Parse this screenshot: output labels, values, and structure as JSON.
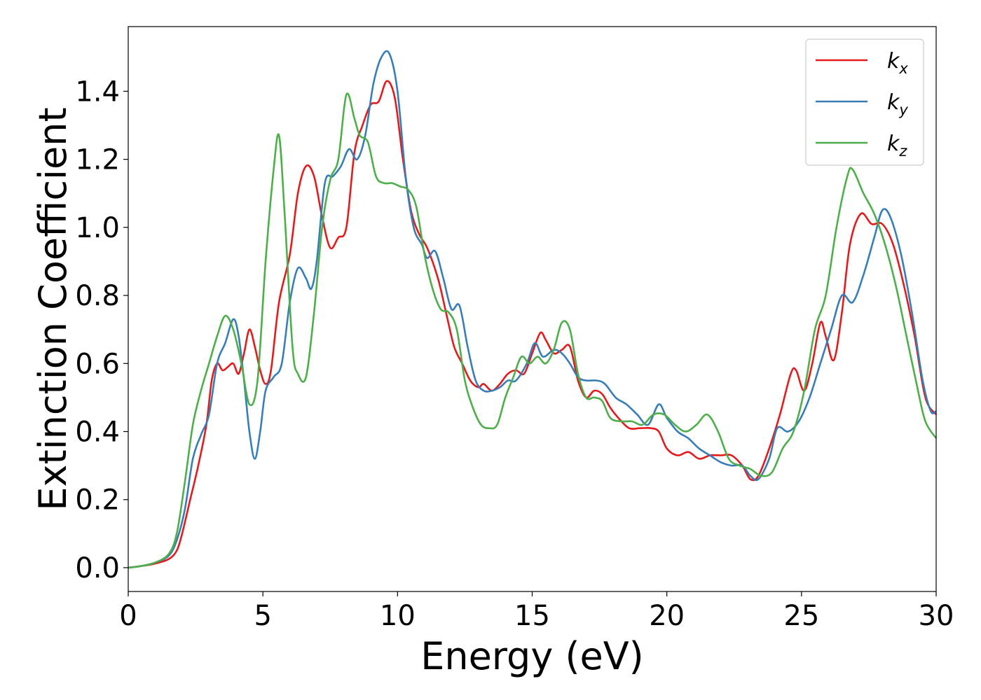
{
  "chart_data": {
    "type": "line",
    "xlabel": "Energy (eV)",
    "ylabel": "Extinction Coefficient",
    "xlim": [
      0,
      30
    ],
    "ylim": [
      -0.07,
      1.59
    ],
    "x_ticks": [
      "0",
      "5",
      "10",
      "15",
      "20",
      "25",
      "30"
    ],
    "y_ticks": [
      "0.0",
      "0.2",
      "0.4",
      "0.6",
      "0.8",
      "1.0",
      "1.2",
      "1.4"
    ],
    "grid": false,
    "legend_position": "top-right",
    "colors": {
      "kx": "#e41a1c",
      "ky": "#377eb8",
      "kz": "#4daf4a"
    },
    "legend": [
      {
        "base": "k",
        "sub": "x"
      },
      {
        "base": "k",
        "sub": "y"
      },
      {
        "base": "k",
        "sub": "z"
      }
    ],
    "series": [
      {
        "key": "kx",
        "points": [
          [
            0,
            0
          ],
          [
            0.5,
            0.005
          ],
          [
            1,
            0.012
          ],
          [
            1.5,
            0.025
          ],
          [
            1.8,
            0.05
          ],
          [
            2,
            0.1
          ],
          [
            2.3,
            0.2
          ],
          [
            2.6,
            0.3
          ],
          [
            2.9,
            0.42
          ],
          [
            3.1,
            0.55
          ],
          [
            3.3,
            0.6
          ],
          [
            3.5,
            0.58
          ],
          [
            3.7,
            0.59
          ],
          [
            3.9,
            0.6
          ],
          [
            4.1,
            0.57
          ],
          [
            4.3,
            0.63
          ],
          [
            4.5,
            0.7
          ],
          [
            4.7,
            0.65
          ],
          [
            4.9,
            0.58
          ],
          [
            5.1,
            0.54
          ],
          [
            5.3,
            0.58
          ],
          [
            5.6,
            0.78
          ],
          [
            6,
            0.92
          ],
          [
            6.3,
            1.1
          ],
          [
            6.6,
            1.18
          ],
          [
            6.9,
            1.15
          ],
          [
            7.2,
            1.03
          ],
          [
            7.5,
            0.94
          ],
          [
            7.8,
            0.97
          ],
          [
            8.1,
            1.0
          ],
          [
            8.4,
            1.22
          ],
          [
            8.7,
            1.3
          ],
          [
            9,
            1.36
          ],
          [
            9.3,
            1.37
          ],
          [
            9.6,
            1.43
          ],
          [
            9.9,
            1.38
          ],
          [
            10.2,
            1.2
          ],
          [
            10.5,
            1.05
          ],
          [
            10.8,
            0.98
          ],
          [
            11.1,
            0.94
          ],
          [
            11.5,
            0.85
          ],
          [
            11.8,
            0.75
          ],
          [
            12.1,
            0.65
          ],
          [
            12.4,
            0.6
          ],
          [
            12.7,
            0.55
          ],
          [
            13,
            0.53
          ],
          [
            13.2,
            0.54
          ],
          [
            13.5,
            0.52
          ],
          [
            13.8,
            0.54
          ],
          [
            14.1,
            0.57
          ],
          [
            14.4,
            0.58
          ],
          [
            14.7,
            0.57
          ],
          [
            15,
            0.63
          ],
          [
            15.3,
            0.69
          ],
          [
            15.5,
            0.67
          ],
          [
            15.8,
            0.63
          ],
          [
            16.1,
            0.64
          ],
          [
            16.4,
            0.65
          ],
          [
            16.7,
            0.55
          ],
          [
            17,
            0.5
          ],
          [
            17.3,
            0.52
          ],
          [
            17.6,
            0.51
          ],
          [
            17.9,
            0.47
          ],
          [
            18.2,
            0.44
          ],
          [
            18.6,
            0.41
          ],
          [
            19,
            0.41
          ],
          [
            19.4,
            0.41
          ],
          [
            19.7,
            0.4
          ],
          [
            20,
            0.35
          ],
          [
            20.4,
            0.33
          ],
          [
            20.8,
            0.34
          ],
          [
            21.2,
            0.32
          ],
          [
            21.6,
            0.33
          ],
          [
            22,
            0.33
          ],
          [
            22.4,
            0.33
          ],
          [
            22.8,
            0.3
          ],
          [
            23.1,
            0.26
          ],
          [
            23.4,
            0.27
          ],
          [
            23.8,
            0.35
          ],
          [
            24.2,
            0.45
          ],
          [
            24.6,
            0.57
          ],
          [
            24.8,
            0.58
          ],
          [
            25.1,
            0.52
          ],
          [
            25.4,
            0.6
          ],
          [
            25.7,
            0.72
          ],
          [
            25.9,
            0.68
          ],
          [
            26.2,
            0.61
          ],
          [
            26.5,
            0.75
          ],
          [
            26.8,
            0.95
          ],
          [
            27.2,
            1.04
          ],
          [
            27.6,
            1.01
          ],
          [
            28,
            1.01
          ],
          [
            28.4,
            0.95
          ],
          [
            28.8,
            0.83
          ],
          [
            29.2,
            0.68
          ],
          [
            29.6,
            0.5
          ],
          [
            30,
            0.45
          ]
        ]
      },
      {
        "key": "ky",
        "points": [
          [
            0,
            0
          ],
          [
            0.5,
            0.005
          ],
          [
            1,
            0.015
          ],
          [
            1.5,
            0.035
          ],
          [
            1.8,
            0.08
          ],
          [
            2.1,
            0.17
          ],
          [
            2.4,
            0.32
          ],
          [
            2.7,
            0.39
          ],
          [
            3,
            0.45
          ],
          [
            3.3,
            0.6
          ],
          [
            3.6,
            0.66
          ],
          [
            3.9,
            0.73
          ],
          [
            4.1,
            0.68
          ],
          [
            4.3,
            0.55
          ],
          [
            4.5,
            0.4
          ],
          [
            4.7,
            0.32
          ],
          [
            4.9,
            0.4
          ],
          [
            5.1,
            0.52
          ],
          [
            5.4,
            0.56
          ],
          [
            5.7,
            0.6
          ],
          [
            6,
            0.78
          ],
          [
            6.3,
            0.88
          ],
          [
            6.6,
            0.85
          ],
          [
            6.8,
            0.82
          ],
          [
            7,
            0.9
          ],
          [
            7.3,
            1.13
          ],
          [
            7.6,
            1.15
          ],
          [
            7.9,
            1.18
          ],
          [
            8.2,
            1.23
          ],
          [
            8.5,
            1.2
          ],
          [
            8.8,
            1.27
          ],
          [
            9.1,
            1.42
          ],
          [
            9.4,
            1.5
          ],
          [
            9.7,
            1.51
          ],
          [
            10,
            1.4
          ],
          [
            10.3,
            1.15
          ],
          [
            10.6,
            1.0
          ],
          [
            10.9,
            0.95
          ],
          [
            11.1,
            0.91
          ],
          [
            11.4,
            0.93
          ],
          [
            11.7,
            0.85
          ],
          [
            12,
            0.76
          ],
          [
            12.3,
            0.77
          ],
          [
            12.6,
            0.65
          ],
          [
            12.9,
            0.55
          ],
          [
            13.2,
            0.52
          ],
          [
            13.5,
            0.52
          ],
          [
            13.8,
            0.53
          ],
          [
            14.1,
            0.55
          ],
          [
            14.4,
            0.55
          ],
          [
            14.8,
            0.6
          ],
          [
            15.1,
            0.66
          ],
          [
            15.4,
            0.62
          ],
          [
            15.8,
            0.64
          ],
          [
            16.1,
            0.63
          ],
          [
            16.4,
            0.6
          ],
          [
            16.7,
            0.56
          ],
          [
            17,
            0.55
          ],
          [
            17.4,
            0.55
          ],
          [
            17.7,
            0.54
          ],
          [
            18.1,
            0.5
          ],
          [
            18.5,
            0.48
          ],
          [
            18.9,
            0.45
          ],
          [
            19.3,
            0.42
          ],
          [
            19.7,
            0.48
          ],
          [
            20,
            0.44
          ],
          [
            20.4,
            0.4
          ],
          [
            20.8,
            0.38
          ],
          [
            21.2,
            0.35
          ],
          [
            21.6,
            0.33
          ],
          [
            22,
            0.31
          ],
          [
            22.4,
            0.3
          ],
          [
            22.8,
            0.3
          ],
          [
            23.1,
            0.27
          ],
          [
            23.4,
            0.26
          ],
          [
            23.8,
            0.32
          ],
          [
            24.1,
            0.41
          ],
          [
            24.5,
            0.4
          ],
          [
            24.9,
            0.43
          ],
          [
            25.3,
            0.5
          ],
          [
            25.7,
            0.6
          ],
          [
            26.1,
            0.7
          ],
          [
            26.5,
            0.8
          ],
          [
            26.9,
            0.78
          ],
          [
            27.3,
            0.86
          ],
          [
            27.7,
            0.97
          ],
          [
            28,
            1.05
          ],
          [
            28.3,
            1.03
          ],
          [
            28.7,
            0.92
          ],
          [
            29.1,
            0.75
          ],
          [
            29.5,
            0.55
          ],
          [
            29.8,
            0.46
          ],
          [
            30,
            0.46
          ]
        ]
      },
      {
        "key": "kz",
        "points": [
          [
            0,
            0
          ],
          [
            0.5,
            0.005
          ],
          [
            1,
            0.015
          ],
          [
            1.5,
            0.04
          ],
          [
            1.8,
            0.1
          ],
          [
            2.1,
            0.25
          ],
          [
            2.4,
            0.42
          ],
          [
            2.7,
            0.52
          ],
          [
            3,
            0.6
          ],
          [
            3.3,
            0.68
          ],
          [
            3.6,
            0.74
          ],
          [
            3.9,
            0.7
          ],
          [
            4.2,
            0.6
          ],
          [
            4.5,
            0.48
          ],
          [
            4.8,
            0.55
          ],
          [
            5.1,
            0.9
          ],
          [
            5.4,
            1.17
          ],
          [
            5.6,
            1.27
          ],
          [
            5.8,
            1.05
          ],
          [
            6.1,
            0.65
          ],
          [
            6.3,
            0.57
          ],
          [
            6.6,
            0.56
          ],
          [
            6.9,
            0.75
          ],
          [
            7.2,
            1.0
          ],
          [
            7.5,
            1.14
          ],
          [
            7.8,
            1.2
          ],
          [
            8.1,
            1.39
          ],
          [
            8.4,
            1.32
          ],
          [
            8.6,
            1.27
          ],
          [
            8.9,
            1.25
          ],
          [
            9.2,
            1.15
          ],
          [
            9.5,
            1.13
          ],
          [
            9.8,
            1.13
          ],
          [
            10.1,
            1.12
          ],
          [
            10.4,
            1.11
          ],
          [
            10.7,
            1.06
          ],
          [
            11,
            0.92
          ],
          [
            11.3,
            0.82
          ],
          [
            11.6,
            0.76
          ],
          [
            11.9,
            0.75
          ],
          [
            12.2,
            0.7
          ],
          [
            12.5,
            0.55
          ],
          [
            12.8,
            0.47
          ],
          [
            13.1,
            0.42
          ],
          [
            13.4,
            0.41
          ],
          [
            13.7,
            0.42
          ],
          [
            14,
            0.5
          ],
          [
            14.3,
            0.56
          ],
          [
            14.6,
            0.62
          ],
          [
            14.9,
            0.6
          ],
          [
            15.2,
            0.62
          ],
          [
            15.5,
            0.6
          ],
          [
            15.8,
            0.64
          ],
          [
            16.1,
            0.72
          ],
          [
            16.4,
            0.7
          ],
          [
            16.7,
            0.57
          ],
          [
            17,
            0.5
          ],
          [
            17.3,
            0.5
          ],
          [
            17.6,
            0.49
          ],
          [
            17.9,
            0.44
          ],
          [
            18.3,
            0.43
          ],
          [
            18.7,
            0.43
          ],
          [
            19.1,
            0.42
          ],
          [
            19.5,
            0.45
          ],
          [
            19.9,
            0.45
          ],
          [
            20.3,
            0.42
          ],
          [
            20.7,
            0.4
          ],
          [
            21.1,
            0.42
          ],
          [
            21.5,
            0.45
          ],
          [
            21.9,
            0.4
          ],
          [
            22.3,
            0.32
          ],
          [
            22.7,
            0.3
          ],
          [
            23.1,
            0.29
          ],
          [
            23.5,
            0.27
          ],
          [
            23.9,
            0.28
          ],
          [
            24.3,
            0.35
          ],
          [
            24.7,
            0.4
          ],
          [
            25.1,
            0.52
          ],
          [
            25.5,
            0.7
          ],
          [
            25.9,
            0.8
          ],
          [
            26.3,
            1.0
          ],
          [
            26.7,
            1.15
          ],
          [
            26.9,
            1.17
          ],
          [
            27.3,
            1.1
          ],
          [
            27.7,
            1.04
          ],
          [
            28.1,
            0.95
          ],
          [
            28.5,
            0.83
          ],
          [
            28.9,
            0.68
          ],
          [
            29.3,
            0.53
          ],
          [
            29.6,
            0.43
          ],
          [
            30,
            0.38
          ]
        ]
      }
    ]
  }
}
